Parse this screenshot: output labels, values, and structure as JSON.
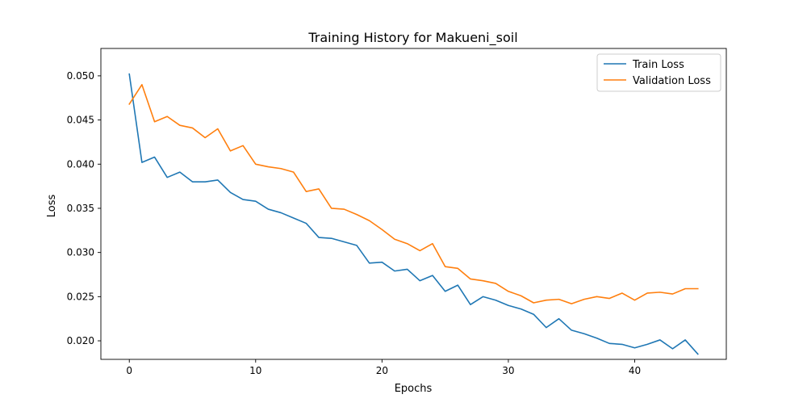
{
  "chart_data": {
    "type": "line",
    "title": "Training History for Makueni_soil",
    "xlabel": "Epochs",
    "ylabel": "Loss",
    "xlim": [
      -2.25,
      47.25
    ],
    "ylim": [
      0.0179,
      0.0531
    ],
    "xticks": [
      0,
      10,
      20,
      30,
      40
    ],
    "yticks": [
      0.02,
      0.025,
      0.03,
      0.035,
      0.04,
      0.045,
      0.05
    ],
    "ytick_labels": [
      "0.020",
      "0.025",
      "0.030",
      "0.035",
      "0.040",
      "0.045",
      "0.050"
    ],
    "grid": false,
    "legend_position": "top-right",
    "series": [
      {
        "name": "Train Loss",
        "color": "#1f77b4",
        "x": [
          0,
          1,
          2,
          3,
          4,
          5,
          6,
          7,
          8,
          9,
          10,
          11,
          12,
          13,
          14,
          15,
          16,
          17,
          18,
          19,
          20,
          21,
          22,
          23,
          24,
          25,
          26,
          27,
          28,
          29,
          30,
          31,
          32,
          33,
          34,
          35,
          36,
          37,
          38,
          39,
          40,
          41,
          42,
          43,
          44,
          45
        ],
        "values": [
          0.0502,
          0.0402,
          0.0408,
          0.0385,
          0.0391,
          0.038,
          0.038,
          0.0382,
          0.0368,
          0.036,
          0.0358,
          0.0349,
          0.0345,
          0.0339,
          0.0333,
          0.0317,
          0.0316,
          0.0312,
          0.0308,
          0.0288,
          0.0289,
          0.0279,
          0.0281,
          0.0268,
          0.0274,
          0.0256,
          0.0263,
          0.0241,
          0.025,
          0.0246,
          0.024,
          0.0236,
          0.023,
          0.0215,
          0.0225,
          0.0212,
          0.0208,
          0.0203,
          0.0197,
          0.0196,
          0.0192,
          0.0196,
          0.0201,
          0.0191,
          0.0201,
          0.0185
        ]
      },
      {
        "name": "Validation Loss",
        "color": "#ff7f0e",
        "x": [
          0,
          1,
          2,
          3,
          4,
          5,
          6,
          7,
          8,
          9,
          10,
          11,
          12,
          13,
          14,
          15,
          16,
          17,
          18,
          19,
          20,
          21,
          22,
          23,
          24,
          25,
          26,
          27,
          28,
          29,
          30,
          31,
          32,
          33,
          34,
          35,
          36,
          37,
          38,
          39,
          40,
          41,
          42,
          43,
          44,
          45
        ],
        "values": [
          0.0468,
          0.049,
          0.0448,
          0.0454,
          0.0444,
          0.0441,
          0.043,
          0.044,
          0.0415,
          0.0421,
          0.04,
          0.0397,
          0.0395,
          0.0391,
          0.0369,
          0.0372,
          0.035,
          0.0349,
          0.0343,
          0.0336,
          0.0326,
          0.0315,
          0.031,
          0.0302,
          0.031,
          0.0284,
          0.0282,
          0.027,
          0.0268,
          0.0265,
          0.0256,
          0.0251,
          0.0243,
          0.0246,
          0.0247,
          0.0242,
          0.0247,
          0.025,
          0.0248,
          0.0254,
          0.0246,
          0.0254,
          0.0255,
          0.0253,
          0.0259,
          0.0259
        ]
      }
    ]
  }
}
